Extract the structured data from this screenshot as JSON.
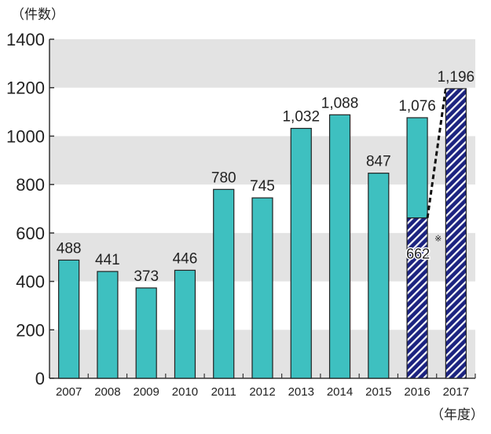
{
  "chart_data": {
    "type": "bar",
    "ylabel": "（件数）",
    "xlabel": "（年度）",
    "ylim": [
      0,
      1400
    ],
    "yticks": [
      0,
      200,
      400,
      600,
      800,
      1000,
      1200,
      1400
    ],
    "categories": [
      "2007",
      "2008",
      "2009",
      "2010",
      "2011",
      "2012",
      "2013",
      "2014",
      "2015",
      "2016",
      "2017"
    ],
    "values": [
      488,
      441,
      373,
      446,
      780,
      745,
      1032,
      1088,
      847,
      1076,
      1196
    ],
    "value_labels": [
      "488",
      "441",
      "373",
      "446",
      "780",
      "745",
      "1,032",
      "1,088",
      "847",
      "1,076",
      "1,196"
    ],
    "hatched_portion": {
      "2016": 662,
      "2017": 1196
    },
    "hatched_label": "662",
    "hatched_note_mark": "※",
    "grid": "alternating gray bands",
    "colors": {
      "bar": "#3ec0c0",
      "hatched": "#1c2380",
      "band": "#e3e3e3"
    }
  }
}
